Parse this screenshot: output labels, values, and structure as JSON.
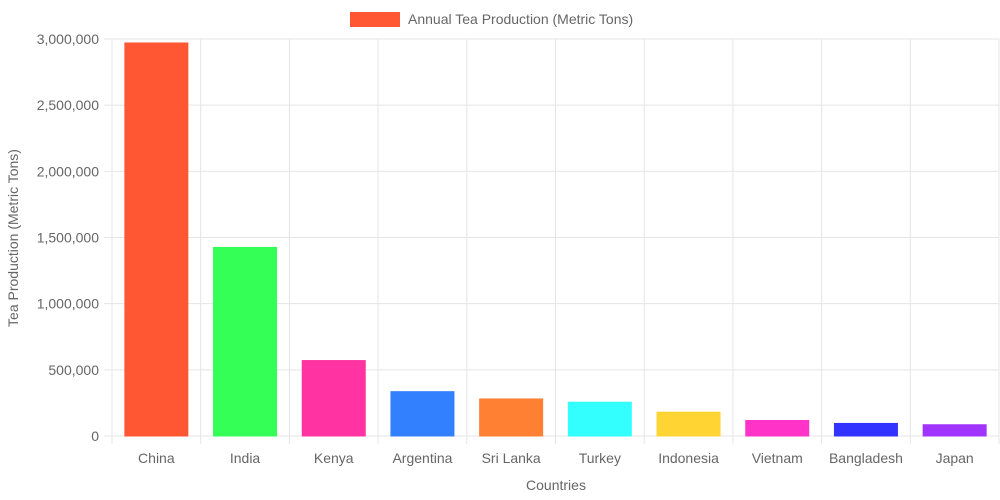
{
  "chart_data": {
    "type": "bar",
    "categories": [
      "China",
      "India",
      "Kenya",
      "Argentina",
      "Sri Lanka",
      "Turkey",
      "Indonesia",
      "Vietnam",
      "Bangladesh",
      "Japan"
    ],
    "series": [
      {
        "name": "Annual Tea Production (Metric Tons)",
        "values": [
          2970000,
          1425000,
          570000,
          335000,
          280000,
          255000,
          180000,
          117000,
          95000,
          85000
        ],
        "colors": [
          "#FF5733",
          "#33FF57",
          "#FF33A1",
          "#3380FF",
          "#FF8033",
          "#33FFFF",
          "#FFD433",
          "#FF33C7",
          "#3333FF",
          "#A133FF"
        ]
      }
    ],
    "xlabel": "Countries",
    "ylabel": "Tea Production (Metric Tons)",
    "ylim": [
      0,
      3000000
    ],
    "yticks": [
      "0",
      "500,000",
      "1,000,000",
      "1,500,000",
      "2,000,000",
      "2,500,000",
      "3,000,000"
    ],
    "ytick_values": [
      0,
      500000,
      1000000,
      1500000,
      2000000,
      2500000,
      3000000
    ],
    "grid": true,
    "legend_position": "top"
  }
}
